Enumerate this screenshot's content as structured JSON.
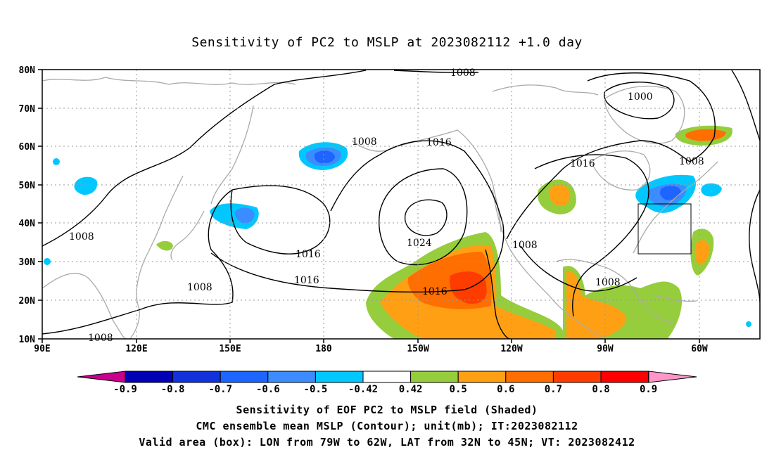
{
  "title": "Sensitivity of PC2 to MSLP at 2023082112 +1.0 day",
  "axes": {
    "lat_labels": [
      "80N",
      "70N",
      "60N",
      "50N",
      "40N",
      "30N",
      "20N",
      "10N"
    ],
    "lon_labels": [
      "90E",
      "120E",
      "150E",
      "180",
      "150W",
      "120W",
      "90W",
      "60W"
    ]
  },
  "contours": {
    "labels": [
      "1008",
      "1008",
      "1000",
      "1016",
      "1016",
      "1008",
      "1008",
      "1024",
      "1016",
      "1016",
      "1016",
      "1008",
      "1008",
      "1008",
      "1008"
    ],
    "line_color": "#000000",
    "coast_color": "#aaaaaa"
  },
  "shading": {
    "negative_regions": [
      "Bering Sea",
      "Japan east",
      "Mongolia",
      "Great Lakes / New England",
      "Labrador Sea"
    ],
    "positive_regions": [
      "NE Pacific subtropics",
      "Gulf of Mexico / Central America",
      "Baffin Bay",
      "Great Plains",
      "Western Atlantic"
    ]
  },
  "valid_box": {
    "lon_from": "79W",
    "lon_to": "62W",
    "lat_from": "32N",
    "lat_to": "45N"
  },
  "colorbar": {
    "ticks": [
      "-0.9",
      "-0.8",
      "-0.7",
      "-0.6",
      "-0.5",
      "-0.42",
      "0.42",
      "0.5",
      "0.6",
      "0.7",
      "0.8",
      "0.9"
    ],
    "colors": [
      "#0000b4",
      "#1432dc",
      "#1e64ff",
      "#3c8cff",
      "#00c8ff",
      "#ffffff",
      "#96cd3c",
      "#ffa014",
      "#ff6e00",
      "#ff3c00",
      "#ff0000"
    ],
    "low_end_color": "#c8008c",
    "high_end_color": "#ff96c8"
  },
  "captions": {
    "line1": "Sensitivity of EOF PC2 to MSLP field (Shaded)",
    "line2": "CMC ensemble mean MSLP (Contour); unit(mb); IT:2023082112",
    "line3": "Valid area (box): LON from 79W to 62W, LAT from 32N to 45N; VT: 2023082412"
  }
}
